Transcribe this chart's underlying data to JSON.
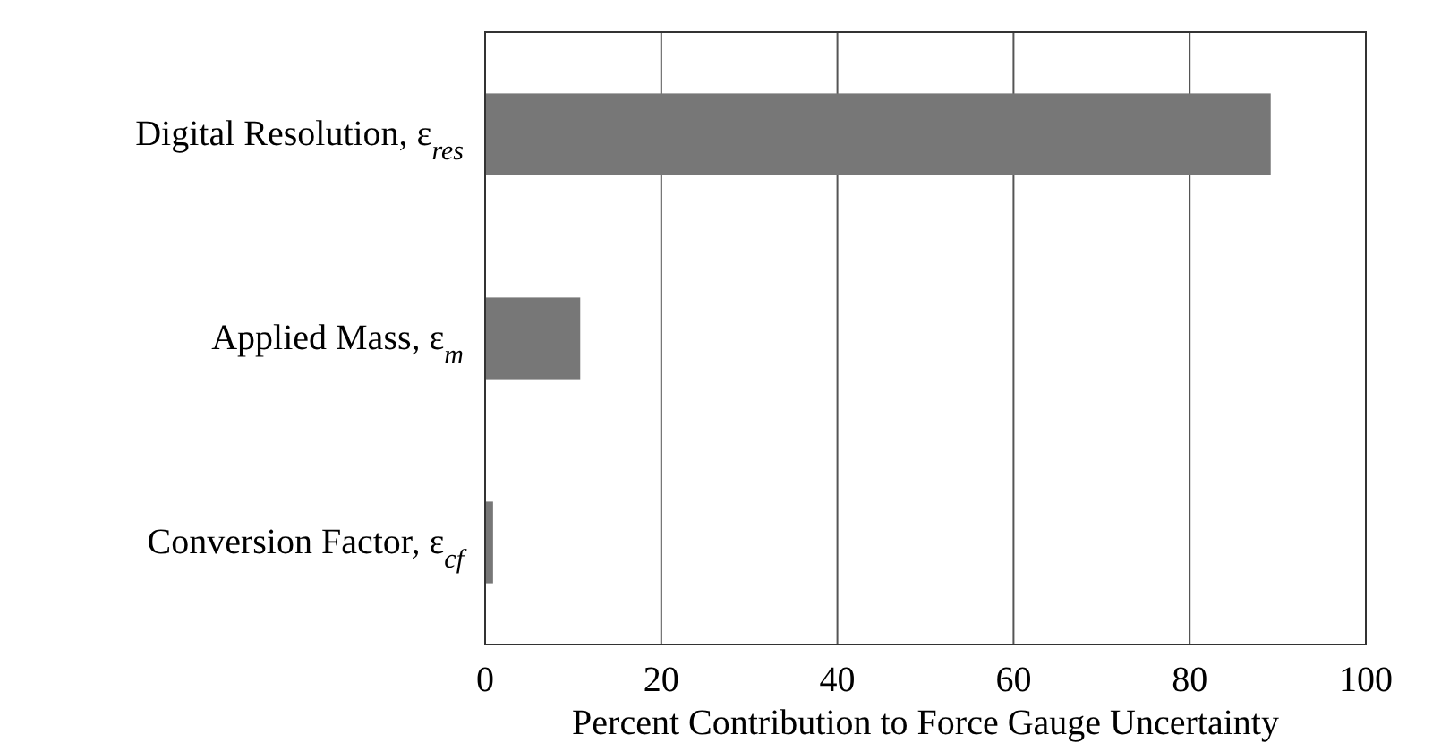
{
  "chart_data": {
    "type": "bar",
    "orientation": "horizontal",
    "xlabel": "Percent Contribution to Force Gauge Uncertainty",
    "categories": [
      "Digital Resolution, ε$_{res}$",
      "Applied Mass, ε$_{m}$",
      "Conversion Factor, ε$_{cf}$"
    ],
    "values": [
      89.2,
      10.8,
      0.9
    ],
    "color": "#777777",
    "xlim": [
      0,
      100
    ],
    "xticks": [
      0,
      20,
      40,
      60,
      80,
      100
    ],
    "grid": "x"
  }
}
